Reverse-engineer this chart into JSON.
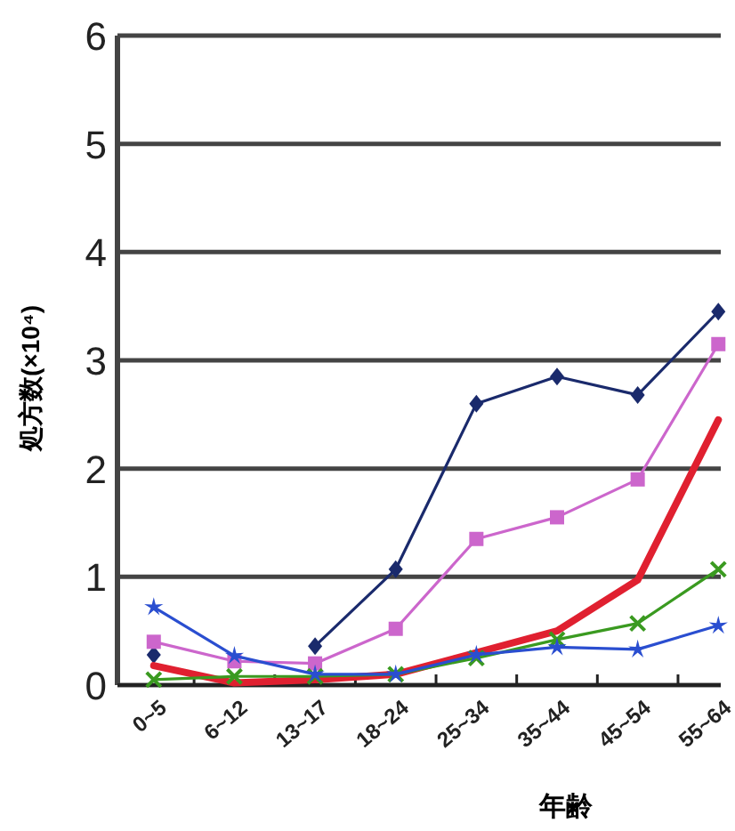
{
  "chart_data": {
    "type": "line",
    "ylabel": "処方数(×10⁴)",
    "xlabel": "年齢",
    "categories": [
      "0~5",
      "6~12",
      "13~17",
      "18~24",
      "25~34",
      "35~44",
      "45~54",
      "55~64"
    ],
    "ylim": [
      0,
      6
    ],
    "yticks": [
      0,
      1,
      2,
      3,
      4,
      5,
      6
    ],
    "grid": "y",
    "series": [
      {
        "color": "#1a2a6c",
        "marker": "diamond",
        "values": [
          0.28,
          null,
          0.36,
          1.07,
          2.6,
          2.85,
          2.68,
          3.45
        ]
      },
      {
        "color": "#cc66cc",
        "marker": "square",
        "values": [
          0.4,
          0.22,
          0.2,
          0.52,
          1.35,
          1.55,
          1.9,
          3.15
        ]
      },
      {
        "color": "#e02030",
        "marker": "none",
        "values": [
          0.18,
          0.02,
          0.05,
          0.1,
          0.3,
          0.5,
          0.97,
          2.45
        ]
      },
      {
        "color": "#3a9a20",
        "marker": "cross",
        "values": [
          0.05,
          0.08,
          0.08,
          0.1,
          0.25,
          0.42,
          0.57,
          1.07
        ]
      },
      {
        "color": "#2a4ed0",
        "marker": "star",
        "values": [
          0.72,
          0.27,
          0.1,
          0.1,
          0.28,
          0.35,
          0.33,
          0.55
        ]
      }
    ]
  }
}
